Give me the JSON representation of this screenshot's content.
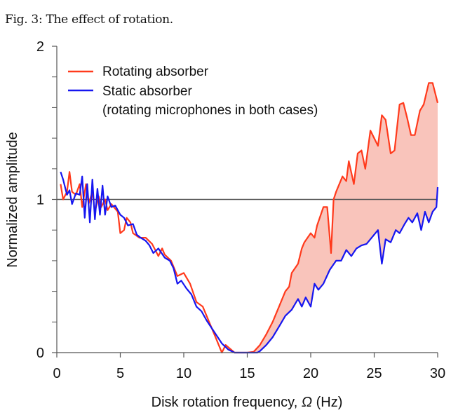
{
  "title": "Fig. 3: The effect of rotation.",
  "chart_data": {
    "type": "line",
    "xlabel_prefix": "Disk rotation frequency, ",
    "xlabel_symbol": "Ω",
    "xlabel_suffix": " (Hz)",
    "ylabel": "Normalized amplitude",
    "xlim": [
      0,
      30
    ],
    "ylim": [
      0,
      2
    ],
    "x_ticks": [
      0,
      5,
      10,
      15,
      20,
      25,
      30
    ],
    "y_ticks": [
      0,
      1,
      2
    ],
    "y_minor_ticks": [
      0.2,
      0.4,
      0.6,
      0.8,
      1.2,
      1.4,
      1.6,
      1.8
    ],
    "reference_line_y": 1,
    "reference_line_color": "#555555",
    "grid": false,
    "legend_position": "top-left",
    "legend_note": "(rotating microphones in both cases)",
    "fill_between": {
      "color": "#f9c4bb",
      "x_from": 15.5,
      "x_to": 30
    },
    "series": [
      {
        "name": "Rotating absorber",
        "color": "#ff3a1c",
        "x": [
          0.3,
          0.5,
          0.8,
          1.0,
          1.2,
          1.5,
          1.8,
          2.0,
          2.3,
          2.5,
          2.8,
          3.0,
          3.3,
          3.5,
          3.8,
          4.0,
          4.3,
          4.5,
          4.8,
          5.0,
          5.3,
          5.5,
          5.8,
          6.0,
          6.5,
          7.0,
          7.5,
          8.0,
          8.3,
          8.5,
          9.0,
          9.5,
          10.0,
          10.5,
          11.0,
          11.5,
          12.0,
          12.5,
          13.0,
          13.3,
          14.0,
          15.0,
          15.5,
          16.0,
          16.5,
          17.0,
          17.5,
          18.0,
          18.3,
          18.5,
          19.0,
          19.3,
          19.5,
          20.0,
          20.3,
          20.5,
          21.0,
          21.3,
          21.6,
          21.8,
          22.0,
          22.5,
          22.8,
          23.0,
          23.4,
          23.7,
          24.0,
          24.3,
          24.7,
          25.0,
          25.3,
          25.6,
          25.9,
          26.3,
          26.6,
          27.0,
          27.3,
          27.6,
          27.9,
          28.2,
          28.6,
          28.9,
          29.3,
          29.6,
          30.0
        ],
        "y": [
          1.1,
          1.0,
          1.05,
          1.18,
          1.05,
          1.03,
          1.1,
          0.95,
          1.1,
          0.97,
          1.05,
          0.92,
          1.02,
          0.95,
          1.0,
          0.93,
          0.97,
          0.95,
          0.92,
          0.78,
          0.8,
          0.88,
          0.85,
          0.78,
          0.75,
          0.75,
          0.71,
          0.63,
          0.68,
          0.64,
          0.6,
          0.5,
          0.52,
          0.45,
          0.33,
          0.3,
          0.2,
          0.1,
          0.0,
          0.05,
          0.0,
          0.0,
          0.005,
          0.05,
          0.12,
          0.2,
          0.3,
          0.4,
          0.43,
          0.52,
          0.58,
          0.68,
          0.72,
          0.78,
          0.75,
          0.83,
          0.95,
          0.95,
          0.65,
          1.0,
          1.05,
          1.15,
          1.12,
          1.25,
          1.1,
          1.3,
          1.32,
          1.2,
          1.45,
          1.4,
          1.35,
          1.55,
          1.52,
          1.3,
          1.32,
          1.62,
          1.63,
          1.53,
          1.42,
          1.42,
          1.58,
          1.62,
          1.76,
          1.76,
          1.63
        ]
      },
      {
        "name": "Static absorber",
        "color": "#1616f0",
        "x": [
          0.3,
          0.5,
          0.8,
          1.0,
          1.2,
          1.5,
          1.8,
          2.0,
          2.2,
          2.4,
          2.6,
          2.8,
          3.0,
          3.2,
          3.4,
          3.6,
          3.8,
          4.0,
          4.3,
          4.6,
          5.0,
          5.3,
          5.6,
          6.0,
          6.3,
          6.6,
          7.0,
          7.3,
          7.6,
          8.0,
          8.5,
          8.9,
          9.2,
          9.5,
          9.8,
          10.2,
          10.6,
          11.0,
          11.4,
          11.8,
          12.2,
          12.6,
          13.0,
          13.5,
          14.0,
          15.0,
          15.8,
          16.0,
          16.5,
          17.0,
          17.5,
          18.0,
          18.5,
          19.0,
          19.3,
          19.6,
          20.0,
          20.3,
          20.6,
          21.0,
          21.5,
          22.0,
          22.4,
          22.8,
          23.2,
          23.6,
          24.0,
          24.4,
          24.8,
          25.3,
          25.6,
          25.9,
          26.3,
          26.7,
          27.0,
          27.4,
          27.7,
          28.0,
          28.4,
          28.7,
          29.0,
          29.3,
          29.6,
          29.9,
          30.0
        ],
        "y": [
          1.18,
          1.13,
          1.03,
          1.06,
          0.97,
          1.04,
          1.03,
          1.15,
          0.88,
          1.1,
          0.85,
          1.13,
          0.87,
          1.07,
          0.9,
          1.09,
          0.9,
          1.02,
          0.95,
          0.96,
          0.9,
          0.88,
          0.83,
          0.84,
          0.77,
          0.75,
          0.73,
          0.7,
          0.65,
          0.68,
          0.62,
          0.6,
          0.55,
          0.45,
          0.47,
          0.42,
          0.38,
          0.3,
          0.27,
          0.21,
          0.16,
          0.11,
          0.06,
          0.02,
          0.0,
          0.0,
          0.0,
          0.01,
          0.05,
          0.1,
          0.17,
          0.24,
          0.28,
          0.35,
          0.3,
          0.36,
          0.3,
          0.45,
          0.41,
          0.45,
          0.54,
          0.6,
          0.6,
          0.67,
          0.63,
          0.68,
          0.7,
          0.71,
          0.75,
          0.8,
          0.58,
          0.74,
          0.72,
          0.8,
          0.78,
          0.84,
          0.88,
          0.85,
          0.91,
          0.8,
          0.92,
          0.85,
          0.92,
          0.95,
          1.08
        ]
      }
    ]
  }
}
